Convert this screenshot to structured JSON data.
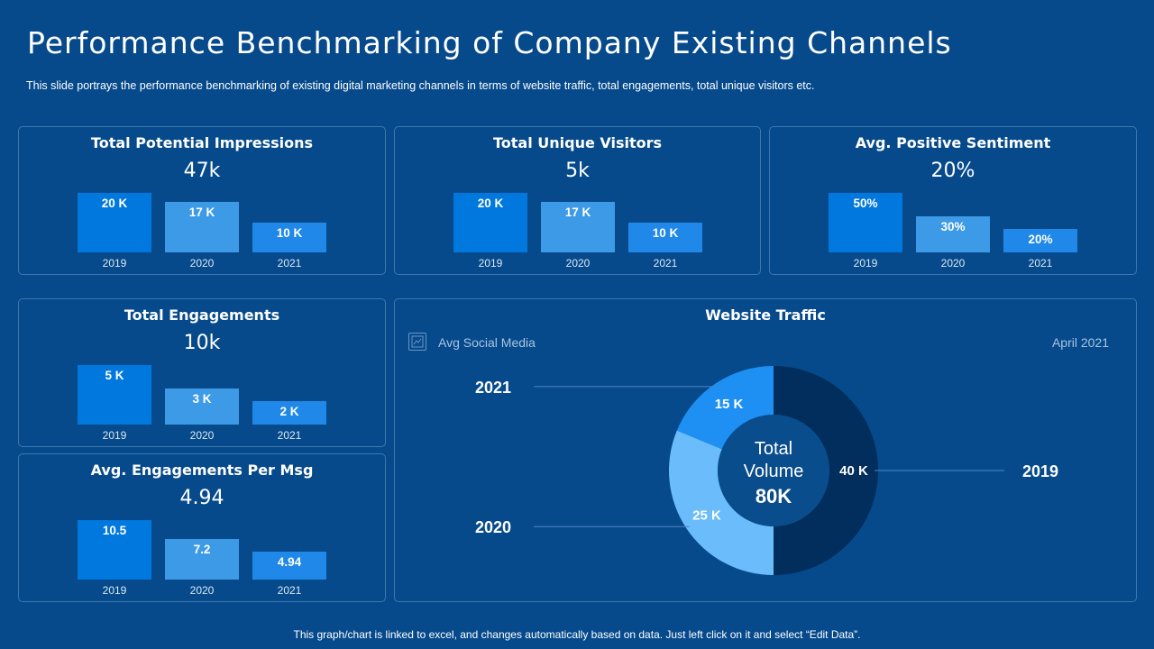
{
  "header": {
    "title": "Performance Benchmarking of Company Existing Channels",
    "subtitle": "This slide portrays the performance  benchmarking of existing digital marketing channels in terms of website traffic, total engagements, total unique visitors etc."
  },
  "footer": {
    "text": "This graph/chart is linked to excel, and changes automatically based on data. Just left click on it and select “Edit Data”."
  },
  "colors": {
    "background": "#064a8c",
    "bar_2019": "#0078de",
    "bar_2020": "#3d9ae6",
    "bar_2021": "#1f88e8",
    "donut_2019": "#012e5c",
    "donut_2020": "#6bbcfb",
    "donut_2021": "#1f90f3",
    "donut_center": "#0a4d8c"
  },
  "chart_data": [
    {
      "type": "bar",
      "title": "Total Potential Impressions",
      "headline": "47k",
      "categories": [
        "2019",
        "2020",
        "2021"
      ],
      "values": [
        20,
        17,
        10
      ],
      "labels": [
        "20 K",
        "17 K",
        "10 K"
      ]
    },
    {
      "type": "bar",
      "title": "Total Unique Visitors",
      "headline": "5k",
      "categories": [
        "2019",
        "2020",
        "2021"
      ],
      "values": [
        20,
        17,
        10
      ],
      "labels": [
        "20 K",
        "17 K",
        "10 K"
      ]
    },
    {
      "type": "bar",
      "title": "Avg. Positive Sentiment",
      "headline": "20%",
      "categories": [
        "2019",
        "2020",
        "2021"
      ],
      "values": [
        50,
        30,
        20
      ],
      "labels": [
        "50%",
        "30%",
        "20%"
      ]
    },
    {
      "type": "bar",
      "title": "Total Engagements",
      "headline": "10k",
      "categories": [
        "2019",
        "2020",
        "2021"
      ],
      "values": [
        5,
        3,
        2
      ],
      "labels": [
        "5 K",
        "3 K",
        "2 K"
      ]
    },
    {
      "type": "bar",
      "title": "Avg. Engagements Per Msg",
      "headline": "4.94",
      "categories": [
        "2019",
        "2020",
        "2021"
      ],
      "values": [
        10.5,
        7.2,
        4.94
      ],
      "labels": [
        "10.5",
        "7.2",
        "4.94"
      ]
    },
    {
      "type": "pie",
      "title": "Website Traffic",
      "legend": "Avg Social Media",
      "date": "April 2021",
      "center_label_line1": "Total",
      "center_label_line2": "Volume",
      "center_value": "80K",
      "categories": [
        "2019",
        "2020",
        "2021"
      ],
      "values": [
        40,
        25,
        15
      ],
      "labels": [
        "40 K",
        "25 K",
        "15 K"
      ]
    }
  ]
}
